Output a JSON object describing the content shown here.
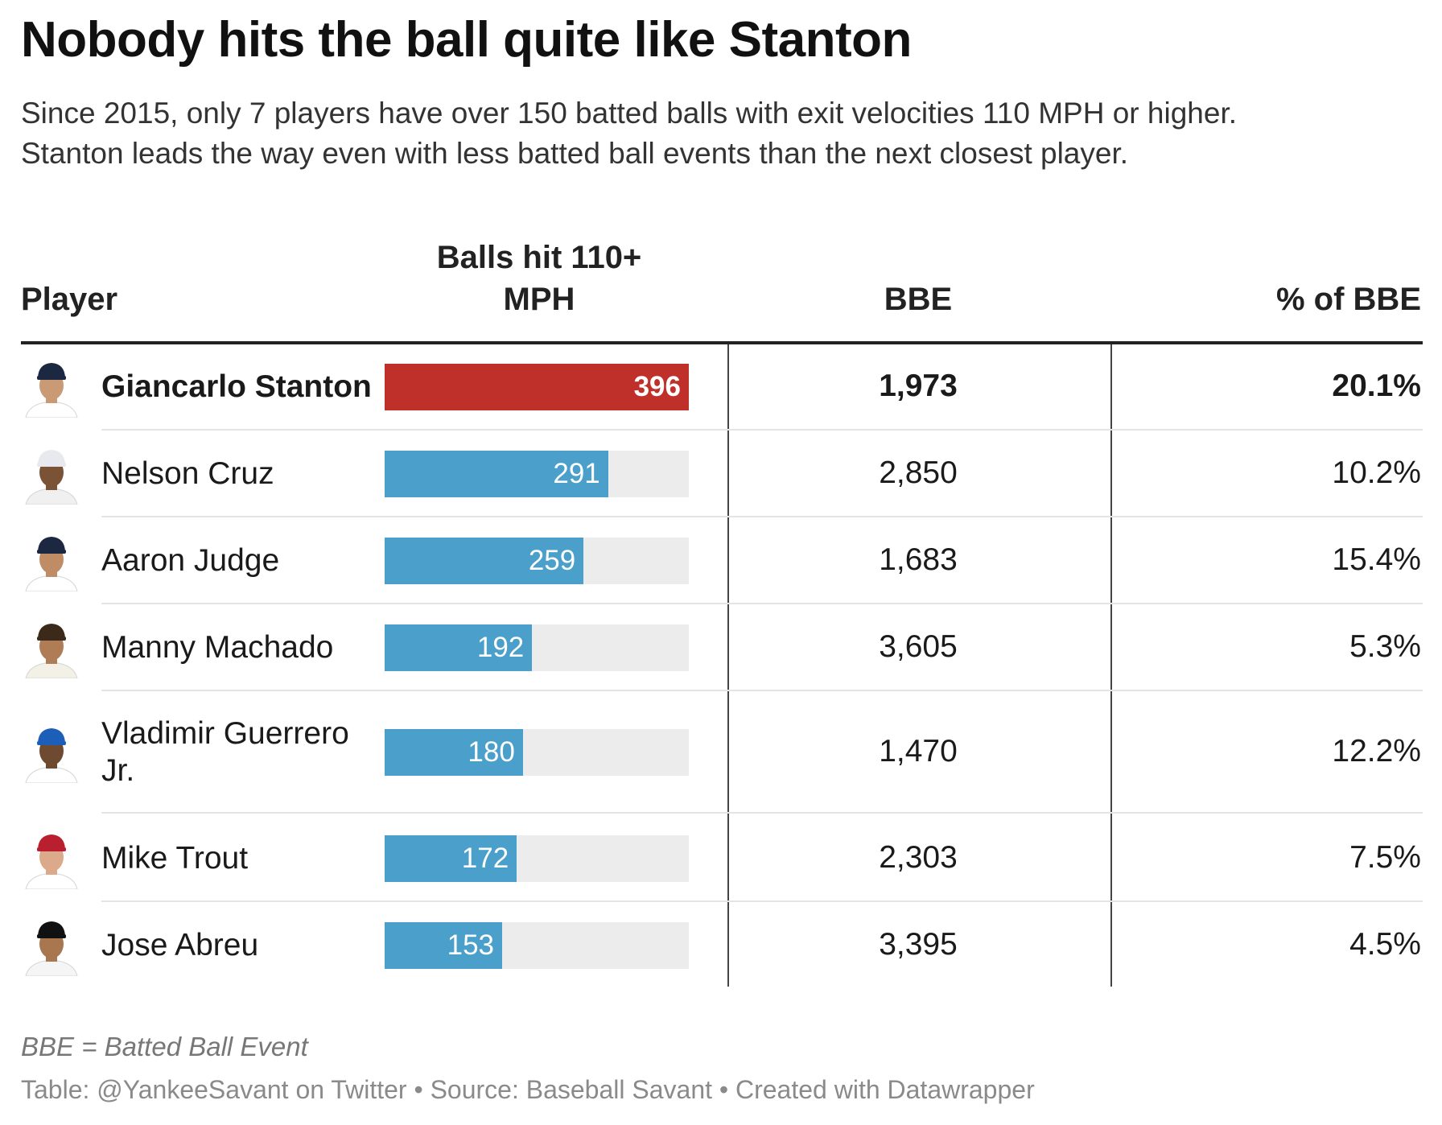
{
  "header": {
    "title": "Nobody hits the ball quite like Stanton",
    "subtitle_line1": "Since 2015, only 7 players have over 150 batted balls with exit velocities 110 MPH or higher.",
    "subtitle_line2": "Stanton leads the way even with less batted ball events than the next closest player."
  },
  "columns": {
    "player": "Player",
    "balls_line1": "Balls hit 110+",
    "balls_line2": "MPH",
    "bbe": "BBE",
    "pct": "% of BBE"
  },
  "colors": {
    "highlight": "#c0302a",
    "bar": "#4a9fcb",
    "track": "#ececec"
  },
  "chart_data": {
    "type": "table",
    "title": "Nobody hits the ball quite like Stanton",
    "bar_max": 396,
    "rows": [
      {
        "player": "Giancarlo Stanton",
        "balls_label": "396",
        "balls": 396,
        "bbe": "1,973",
        "pct": "20.1%",
        "highlight": true,
        "cap": "#1c2841",
        "skin": "#c99a73",
        "jersey": "#ffffff"
      },
      {
        "player": "Nelson Cruz",
        "balls_label": "291",
        "balls": 291,
        "bbe": "2,850",
        "pct": "10.2%",
        "highlight": false,
        "cap": "#e8e8ef",
        "skin": "#7a5236",
        "jersey": "#f0f0f0"
      },
      {
        "player": "Aaron Judge",
        "balls_label": "259",
        "balls": 259,
        "bbe": "1,683",
        "pct": "15.4%",
        "highlight": false,
        "cap": "#1c2841",
        "skin": "#c08c66",
        "jersey": "#ffffff"
      },
      {
        "player": "Manny Machado",
        "balls_label": "192",
        "balls": 192,
        "bbe": "3,605",
        "pct": "5.3%",
        "highlight": false,
        "cap": "#3b2a1a",
        "skin": "#b07c56",
        "jersey": "#f3f0e6"
      },
      {
        "player": "Vladimir Guerrero Jr.",
        "balls_label": "180",
        "balls": 180,
        "bbe": "1,470",
        "pct": "12.2%",
        "highlight": false,
        "cap": "#1d5fb8",
        "skin": "#6e4a30",
        "jersey": "#ffffff"
      },
      {
        "player": "Mike Trout",
        "balls_label": "172",
        "balls": 172,
        "bbe": "2,303",
        "pct": "7.5%",
        "highlight": false,
        "cap": "#ba1f2f",
        "skin": "#dca98a",
        "jersey": "#ffffff"
      },
      {
        "player": "Jose Abreu",
        "balls_label": "153",
        "balls": 153,
        "bbe": "3,395",
        "pct": "4.5%",
        "highlight": false,
        "cap": "#111111",
        "skin": "#a8764f",
        "jersey": "#f5f5f5"
      }
    ]
  },
  "footer": {
    "note": "BBE = Batted Ball Event",
    "credit": "Table: @YankeeSavant on Twitter • Source: Baseball Savant • Created with Datawrapper"
  }
}
